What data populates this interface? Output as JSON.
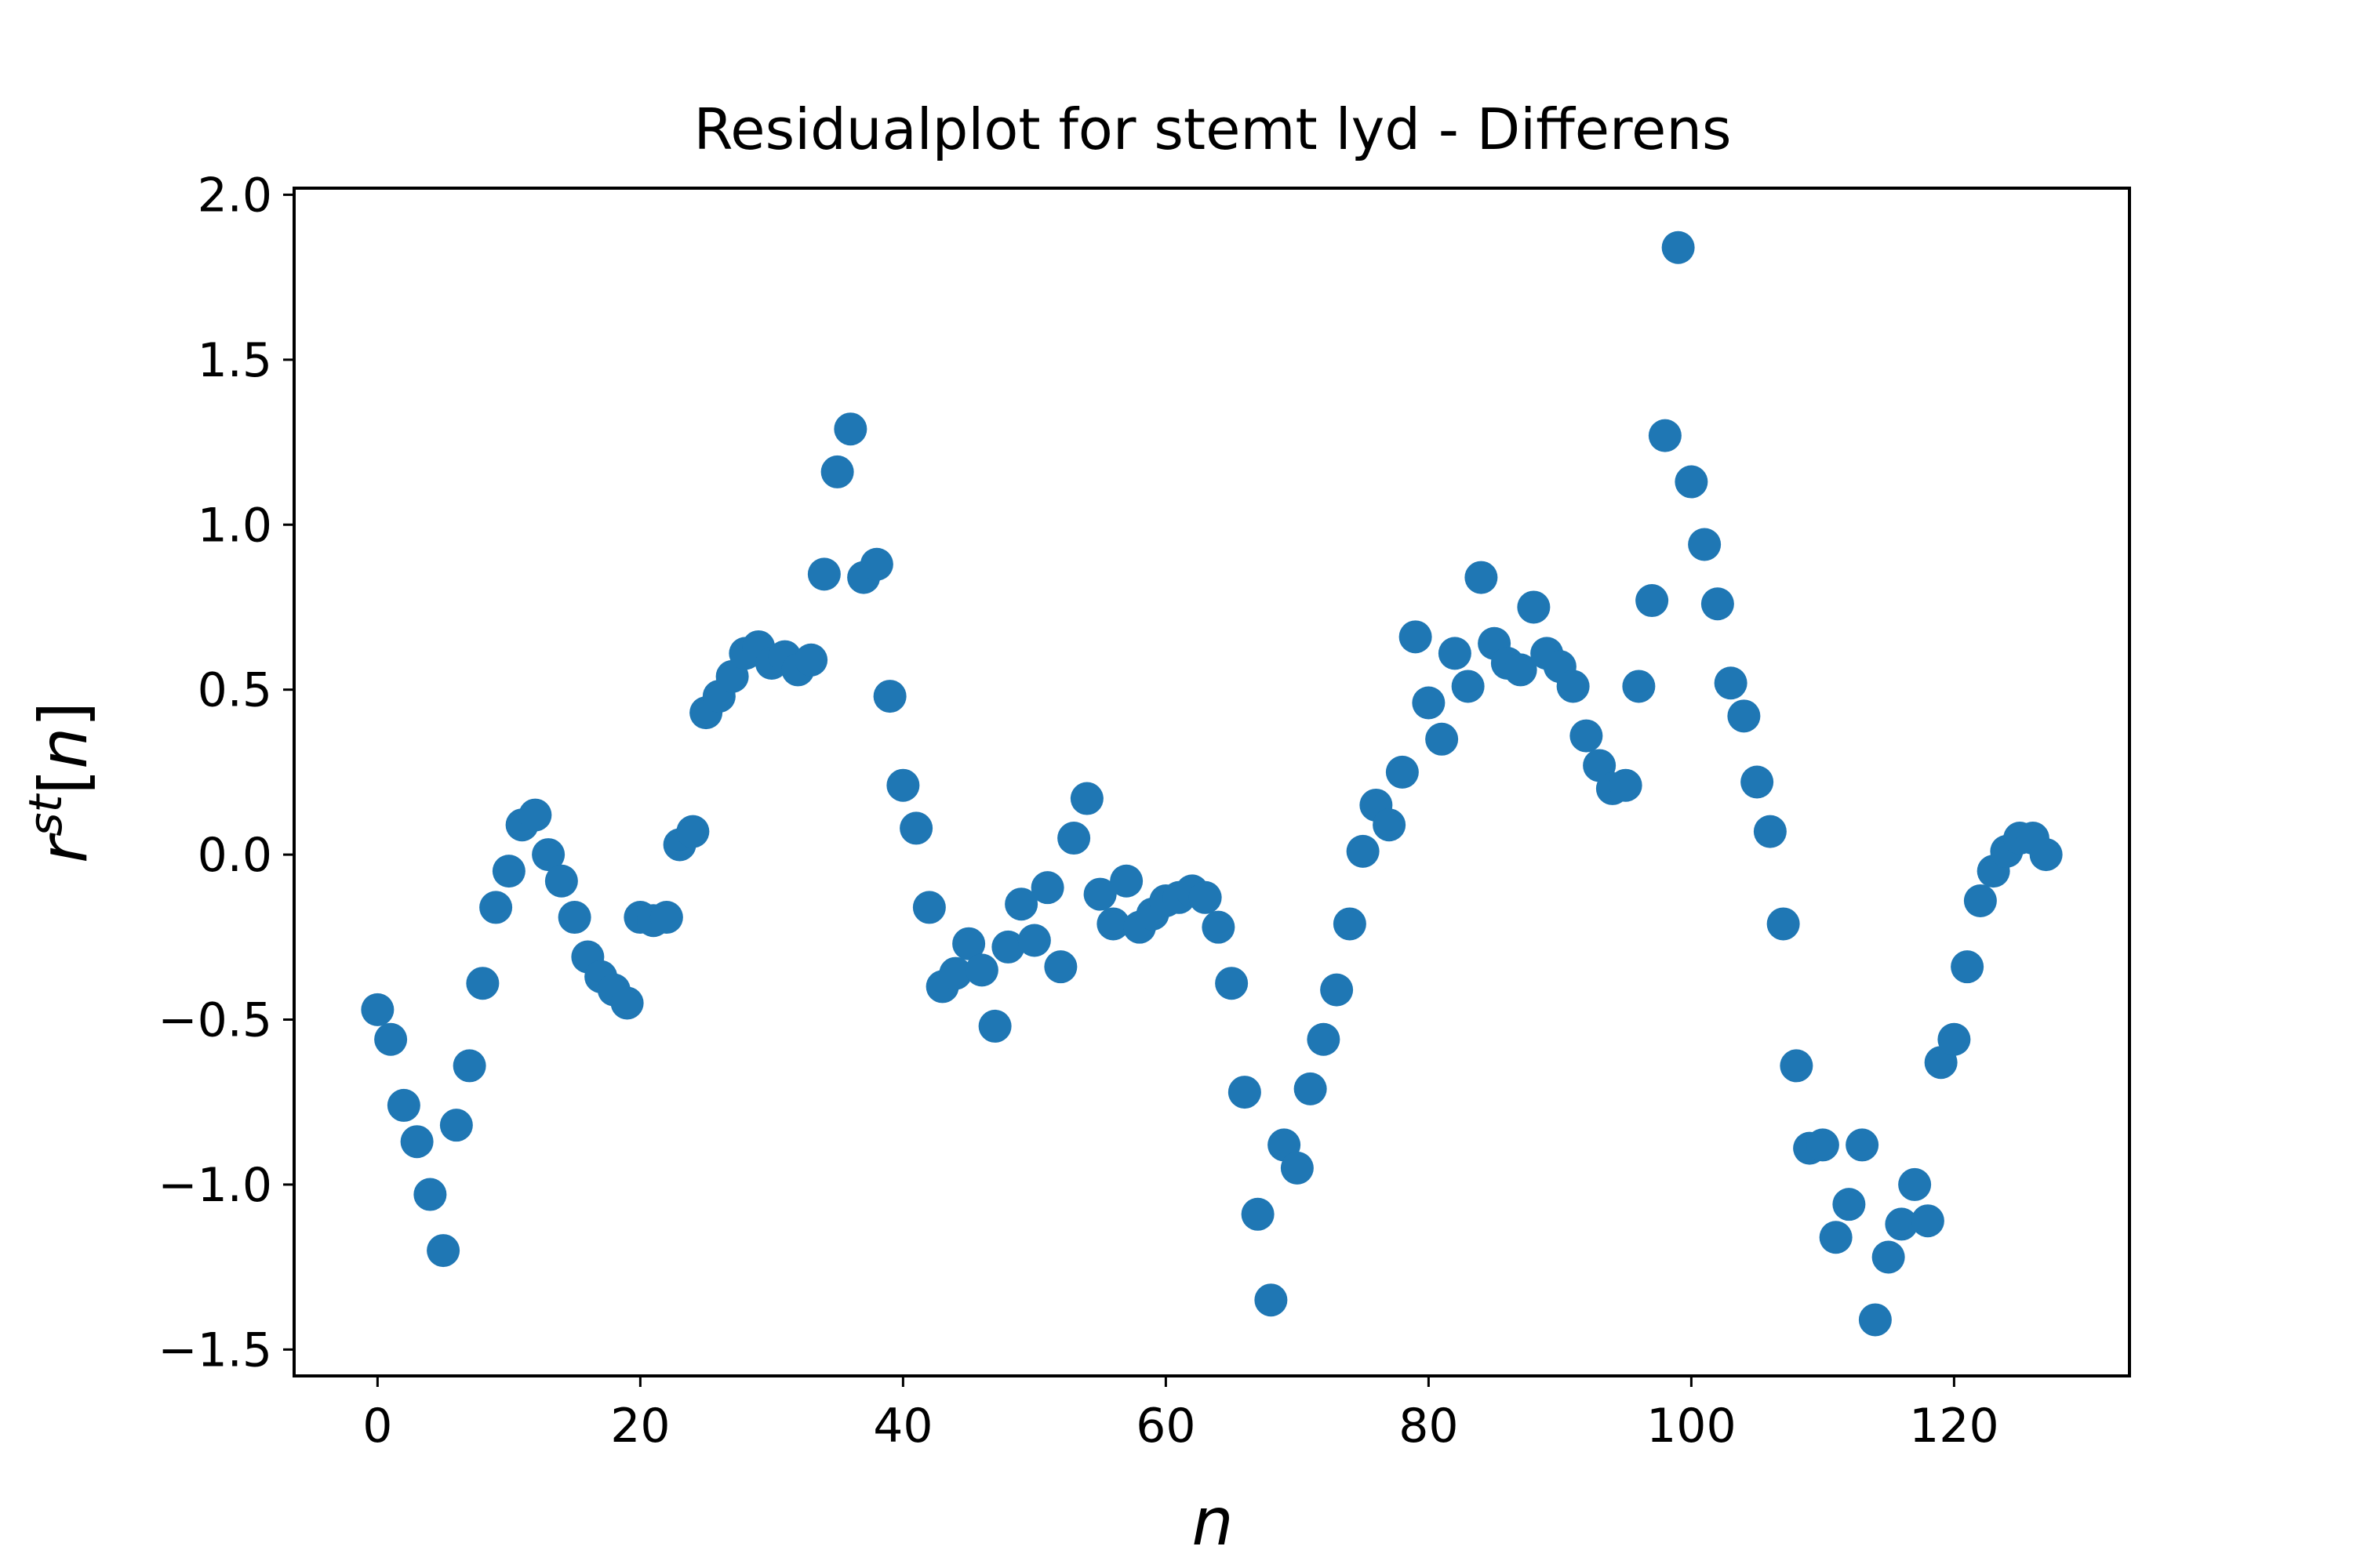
{
  "chart_data": {
    "type": "scatter",
    "title": "Residualplot for stemt lyd - Differens",
    "xlabel": "n",
    "ylabel": {
      "base": "r",
      "superscript": "st",
      "open_bracket": "[",
      "index": "n",
      "close_bracket": "]"
    },
    "xlim": [
      -6.35,
      133.35
    ],
    "ylim": [
      -1.58,
      2.02
    ],
    "xticks": [
      0,
      20,
      40,
      60,
      80,
      100,
      120
    ],
    "xtick_labels": [
      "0",
      "20",
      "40",
      "60",
      "80",
      "100",
      "120"
    ],
    "yticks": [
      -1.5,
      -1.0,
      -0.5,
      0.0,
      0.5,
      1.0,
      1.5,
      2.0
    ],
    "ytick_labels": [
      "−1.5",
      "−1.0",
      "−0.5",
      "0.0",
      "0.5",
      "1.0",
      "1.5",
      "2.0"
    ],
    "grid": false,
    "legend": "none",
    "marker_color": "#1f77b4",
    "series": [
      {
        "x": [
          0,
          1,
          2,
          3,
          4,
          5,
          6,
          7,
          8,
          9,
          10,
          11,
          12,
          13,
          14,
          15,
          16,
          17,
          18,
          19,
          20,
          21,
          22,
          23,
          24,
          25,
          26,
          27,
          28,
          29,
          30,
          31,
          32,
          33,
          34,
          35,
          36,
          37,
          38,
          39,
          40,
          41,
          42,
          43,
          44,
          45,
          46,
          47,
          48,
          49,
          50,
          51,
          52,
          53,
          54,
          55,
          56,
          57,
          58,
          59,
          60,
          61,
          62,
          63,
          64,
          65,
          66,
          67,
          68,
          69,
          70,
          71,
          72,
          73,
          74,
          75,
          76,
          77,
          78,
          79,
          80,
          81,
          82,
          83,
          84,
          85,
          86,
          87,
          88,
          89,
          90,
          91,
          92,
          93,
          94,
          95,
          96,
          97,
          98,
          99,
          100,
          101,
          102,
          103,
          104,
          105,
          106,
          107,
          108,
          109,
          110,
          111,
          112,
          113,
          114,
          115,
          116,
          117,
          118,
          119,
          120,
          121,
          122,
          123,
          124,
          125,
          126,
          127
        ],
        "y": [
          -0.47,
          -0.56,
          -0.76,
          -0.87,
          -1.03,
          -1.2,
          -0.82,
          -0.64,
          -0.39,
          -0.16,
          -0.05,
          0.09,
          0.12,
          0.0,
          -0.08,
          -0.19,
          -0.31,
          -0.37,
          -0.41,
          -0.45,
          -0.19,
          -0.2,
          -0.19,
          0.03,
          0.07,
          0.43,
          0.48,
          0.54,
          0.61,
          0.63,
          0.58,
          0.6,
          0.56,
          0.59,
          0.85,
          1.16,
          1.29,
          0.84,
          0.88,
          0.48,
          0.21,
          0.08,
          -0.16,
          -0.4,
          -0.36,
          -0.27,
          -0.35,
          -0.52,
          -0.28,
          -0.15,
          -0.26,
          -0.1,
          -0.34,
          0.05,
          0.17,
          -0.12,
          -0.21,
          -0.08,
          -0.22,
          -0.18,
          -0.14,
          -0.13,
          -0.11,
          -0.13,
          -0.22,
          -0.39,
          -0.72,
          -1.09,
          -1.35,
          -0.88,
          -0.95,
          -0.71,
          -0.56,
          -0.41,
          -0.21,
          0.01,
          0.15,
          0.09,
          0.25,
          0.66,
          0.46,
          0.35,
          0.61,
          0.51,
          0.84,
          0.64,
          0.58,
          0.56,
          0.75,
          0.61,
          0.57,
          0.51,
          0.36,
          0.27,
          0.2,
          0.21,
          0.51,
          0.77,
          1.27,
          1.84,
          1.13,
          0.94,
          0.76,
          0.52,
          0.42,
          0.22,
          0.07,
          -0.21,
          -0.64,
          -0.89,
          -0.88,
          -1.16,
          -1.06,
          -0.88,
          -1.41,
          -1.22,
          -1.12,
          -1.0,
          -1.11,
          -0.63,
          -0.56,
          -0.34,
          -0.14,
          -0.05,
          0.01,
          0.05,
          0.05,
          0.0
        ]
      }
    ]
  }
}
